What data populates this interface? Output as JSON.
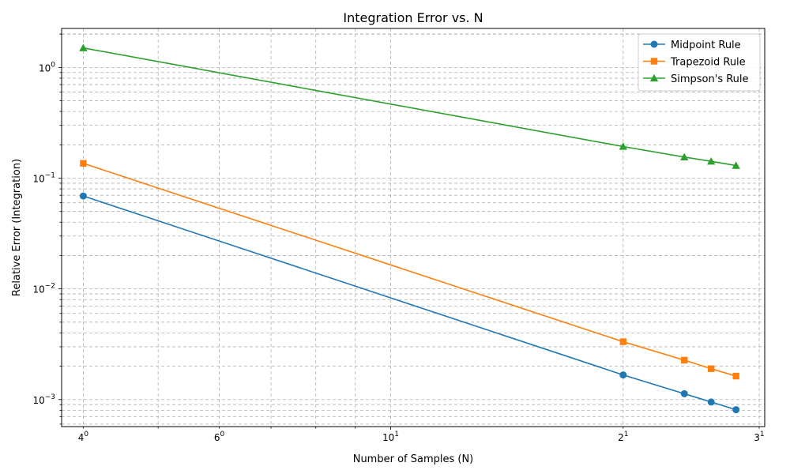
{
  "chart_data": {
    "type": "line",
    "title": "Integration Error vs. N",
    "xlabel": "Number of Samples (N)",
    "ylabel": "Relative Error (Integration)",
    "xscale": "log",
    "yscale": "log",
    "xlim": [
      3.75,
      30.5
    ],
    "ylim": [
      0.00057,
      2.25
    ],
    "grid": true,
    "legend_position": "top-right",
    "x": [
      4,
      20,
      24,
      26,
      28
    ],
    "x_tick_labels": [
      {
        "value": 4,
        "base": "4",
        "sup": "0"
      },
      {
        "value": 6,
        "base": "6",
        "sup": "0"
      },
      {
        "value": 10,
        "base": "10",
        "sup": "1"
      },
      {
        "value": 20,
        "base": "2",
        "sup": "1"
      },
      {
        "value": 30,
        "base": "3",
        "sup": "1"
      }
    ],
    "y_tick_labels": [
      {
        "value": 1,
        "base": "10",
        "sup": "0"
      },
      {
        "value": 0.1,
        "base": "10",
        "sup": "−1"
      },
      {
        "value": 0.01,
        "base": "10",
        "sup": "−2"
      },
      {
        "value": 0.001,
        "base": "10",
        "sup": "−3"
      }
    ],
    "series": [
      {
        "name": "Midpoint Rule",
        "color": "#1f77b4",
        "marker": "circle",
        "values": [
          0.069,
          0.00167,
          0.00113,
          0.00095,
          0.00081
        ]
      },
      {
        "name": "Trapezoid Rule",
        "color": "#ff7f0e",
        "marker": "square",
        "values": [
          0.136,
          0.00333,
          0.00227,
          0.0019,
          0.00163
        ]
      },
      {
        "name": "Simpson's Rule",
        "color": "#2ca02c",
        "marker": "triangle",
        "values": [
          1.5,
          0.193,
          0.155,
          0.142,
          0.13
        ]
      }
    ]
  }
}
